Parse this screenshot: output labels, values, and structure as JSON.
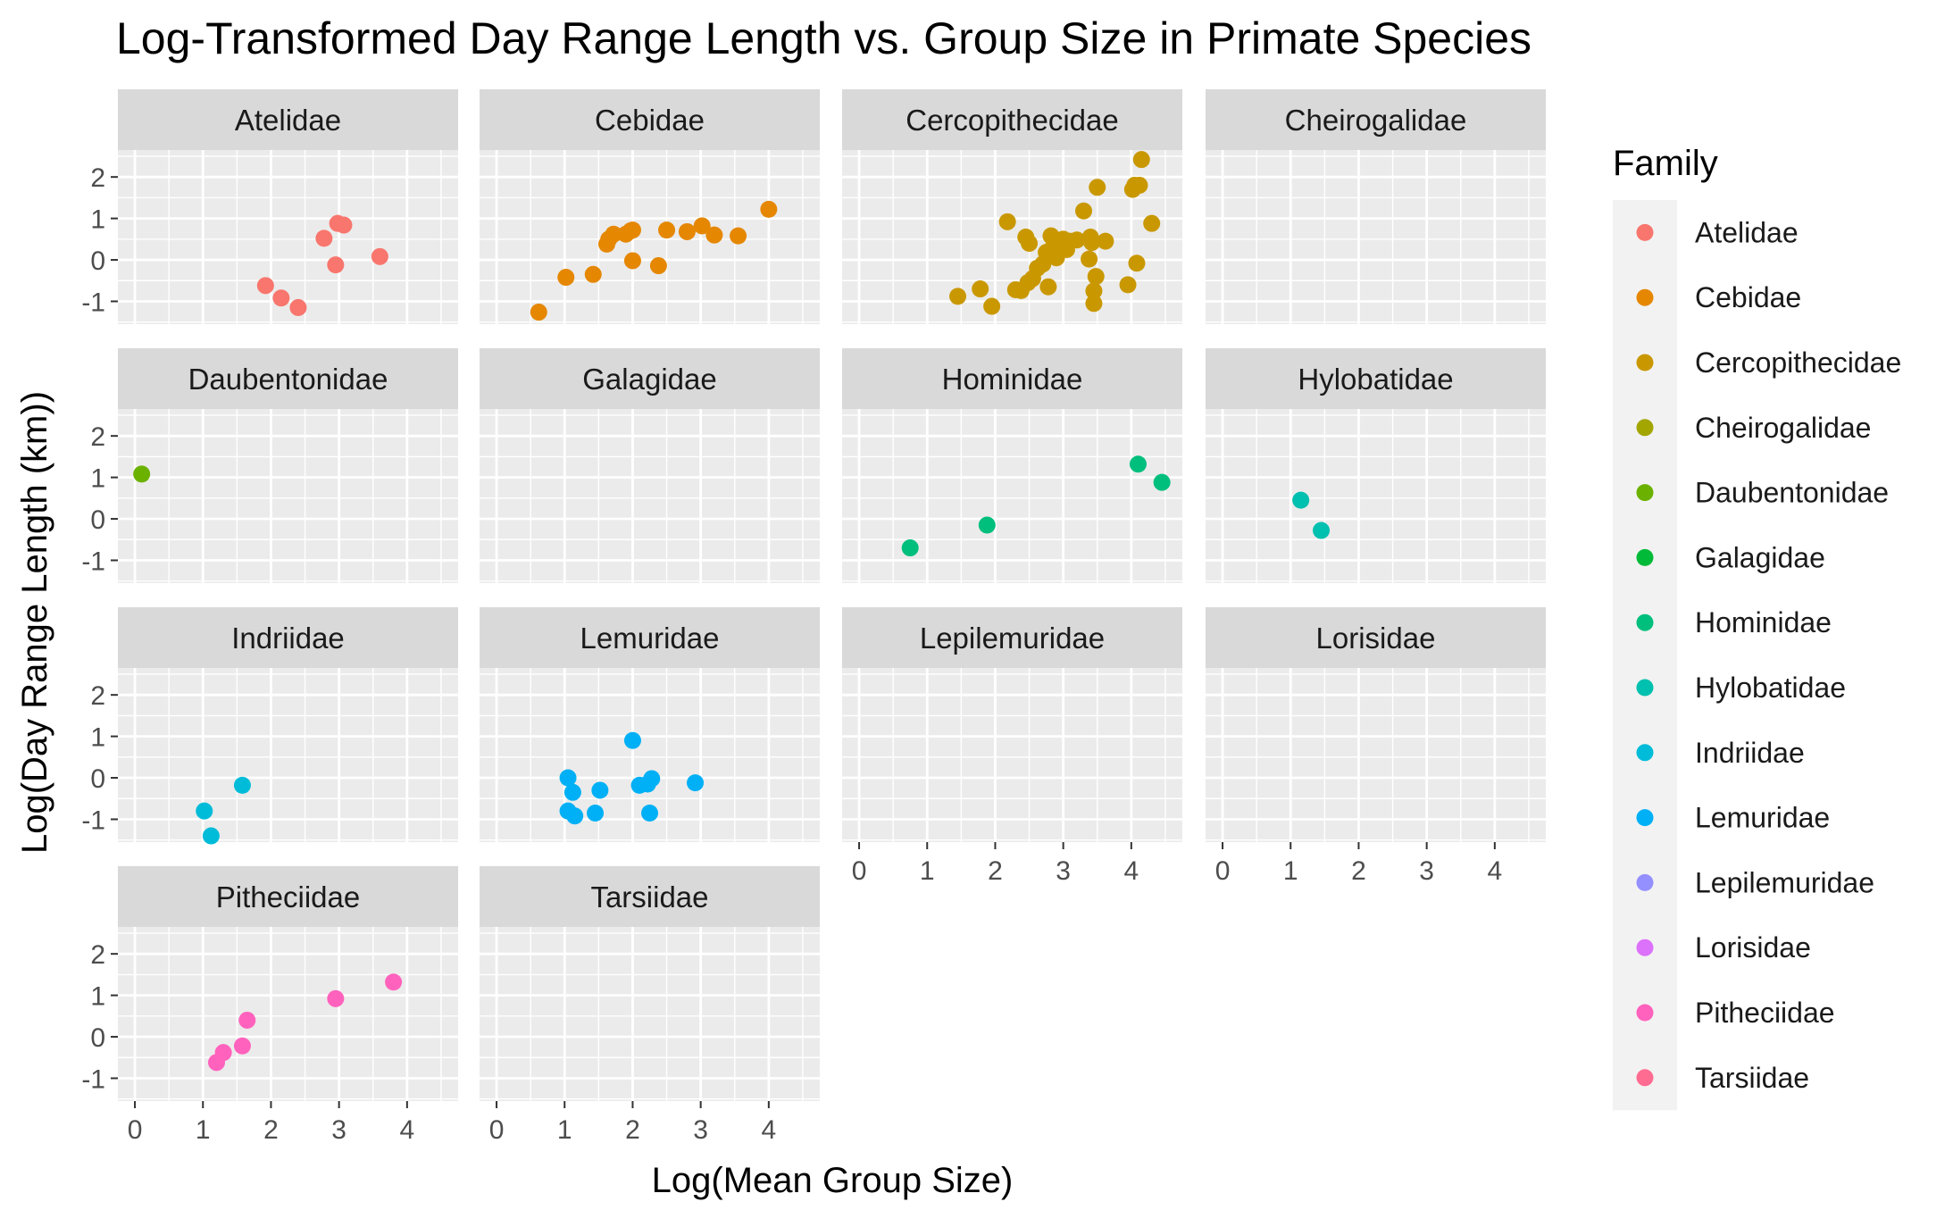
{
  "chart_data": {
    "type": "scatter",
    "title": "Log-Transformed Day Range Length vs. Group Size in Primate Species",
    "xlabel": "Log(Mean Group Size)",
    "ylabel": "Log(Day Range Length (km))",
    "xlim": [
      -0.25,
      4.75
    ],
    "ylim": [
      -1.55,
      2.65
    ],
    "x_ticks": [
      "0",
      "1",
      "2",
      "3",
      "4"
    ],
    "y_ticks": [
      "-1",
      "0",
      "1",
      "2"
    ],
    "grid": true,
    "facet_by": "Family",
    "legend": {
      "title": "Family",
      "position": "right"
    },
    "panels": [
      {
        "family": "Atelidae",
        "color": "#F8766D",
        "points": [
          [
            1.92,
            -0.62
          ],
          [
            2.15,
            -0.92
          ],
          [
            2.4,
            -1.15
          ],
          [
            2.78,
            0.52
          ],
          [
            2.95,
            -0.12
          ],
          [
            2.98,
            0.88
          ],
          [
            3.07,
            0.84
          ],
          [
            3.6,
            0.08
          ]
        ]
      },
      {
        "family": "Cebidae",
        "color": "#E58700",
        "points": [
          [
            0.62,
            -1.26
          ],
          [
            1.02,
            -0.42
          ],
          [
            1.42,
            -0.35
          ],
          [
            1.62,
            0.38
          ],
          [
            1.65,
            0.5
          ],
          [
            1.72,
            0.62
          ],
          [
            1.9,
            0.62
          ],
          [
            1.97,
            0.7
          ],
          [
            2.0,
            0.72
          ],
          [
            2.0,
            -0.02
          ],
          [
            2.38,
            -0.14
          ],
          [
            2.5,
            0.72
          ],
          [
            2.8,
            0.68
          ],
          [
            3.02,
            0.82
          ],
          [
            3.2,
            0.6
          ],
          [
            3.55,
            0.58
          ],
          [
            4.0,
            1.22
          ]
        ]
      },
      {
        "family": "Cercopithecidae",
        "color": "#C99800",
        "points": [
          [
            1.45,
            -0.88
          ],
          [
            1.78,
            -0.7
          ],
          [
            1.95,
            -1.12
          ],
          [
            2.18,
            0.92
          ],
          [
            2.3,
            -0.72
          ],
          [
            2.38,
            -0.74
          ],
          [
            2.45,
            0.55
          ],
          [
            2.48,
            -0.55
          ],
          [
            2.5,
            0.4
          ],
          [
            2.55,
            -0.45
          ],
          [
            2.62,
            -0.2
          ],
          [
            2.7,
            -0.1
          ],
          [
            2.75,
            0.18
          ],
          [
            2.78,
            -0.65
          ],
          [
            2.82,
            0.58
          ],
          [
            2.85,
            0.3
          ],
          [
            2.9,
            0.05
          ],
          [
            2.92,
            0.42
          ],
          [
            2.95,
            0.22
          ],
          [
            3.0,
            0.5
          ],
          [
            3.05,
            0.25
          ],
          [
            3.1,
            0.45
          ],
          [
            3.2,
            0.48
          ],
          [
            3.3,
            1.18
          ],
          [
            3.38,
            0.02
          ],
          [
            3.4,
            0.55
          ],
          [
            3.42,
            0.42
          ],
          [
            3.45,
            -0.75
          ],
          [
            3.48,
            -0.4
          ],
          [
            3.45,
            -1.05
          ],
          [
            3.5,
            1.75
          ],
          [
            3.62,
            0.45
          ],
          [
            3.95,
            -0.6
          ],
          [
            4.02,
            1.7
          ],
          [
            4.05,
            1.8
          ],
          [
            4.08,
            -0.08
          ],
          [
            4.12,
            1.8
          ],
          [
            4.15,
            2.42
          ],
          [
            4.3,
            0.88
          ]
        ]
      },
      {
        "family": "Cheirogalidae",
        "color": "#A3A500",
        "points": []
      },
      {
        "family": "Daubentonidae",
        "color": "#6BB100",
        "points": [
          [
            0.1,
            1.08
          ]
        ]
      },
      {
        "family": "Galagidae",
        "color": "#00BA38",
        "points": []
      },
      {
        "family": "Hominidae",
        "color": "#00BF7D",
        "points": [
          [
            0.75,
            -0.7
          ],
          [
            1.88,
            -0.15
          ],
          [
            4.1,
            1.32
          ],
          [
            4.45,
            0.88
          ]
        ]
      },
      {
        "family": "Hylobatidae",
        "color": "#00C0AF",
        "points": [
          [
            1.15,
            0.45
          ],
          [
            1.45,
            -0.28
          ]
        ]
      },
      {
        "family": "Indriidae",
        "color": "#00BCD8",
        "points": [
          [
            1.02,
            -0.8
          ],
          [
            1.12,
            -1.4
          ],
          [
            1.58,
            -0.18
          ]
        ]
      },
      {
        "family": "Lemuridae",
        "color": "#00B0F6",
        "points": [
          [
            1.05,
            0.0
          ],
          [
            1.05,
            -0.8
          ],
          [
            1.12,
            -0.35
          ],
          [
            1.15,
            -0.92
          ],
          [
            1.45,
            -0.85
          ],
          [
            1.52,
            -0.3
          ],
          [
            2.0,
            0.9
          ],
          [
            2.1,
            -0.18
          ],
          [
            2.22,
            -0.15
          ],
          [
            2.25,
            -0.85
          ],
          [
            2.28,
            -0.02
          ],
          [
            2.92,
            -0.12
          ]
        ]
      },
      {
        "family": "Lepilemuridae",
        "color": "#9590FF",
        "points": []
      },
      {
        "family": "Lorisidae",
        "color": "#DC71FA",
        "points": []
      },
      {
        "family": "Pitheciidae",
        "color": "#FF62BC",
        "points": [
          [
            1.2,
            -0.62
          ],
          [
            1.3,
            -0.38
          ],
          [
            1.58,
            -0.22
          ],
          [
            1.65,
            0.4
          ],
          [
            2.95,
            0.92
          ],
          [
            3.8,
            1.32
          ]
        ]
      },
      {
        "family": "Tarsiidae",
        "color": "#FF6C91",
        "points": []
      }
    ]
  }
}
